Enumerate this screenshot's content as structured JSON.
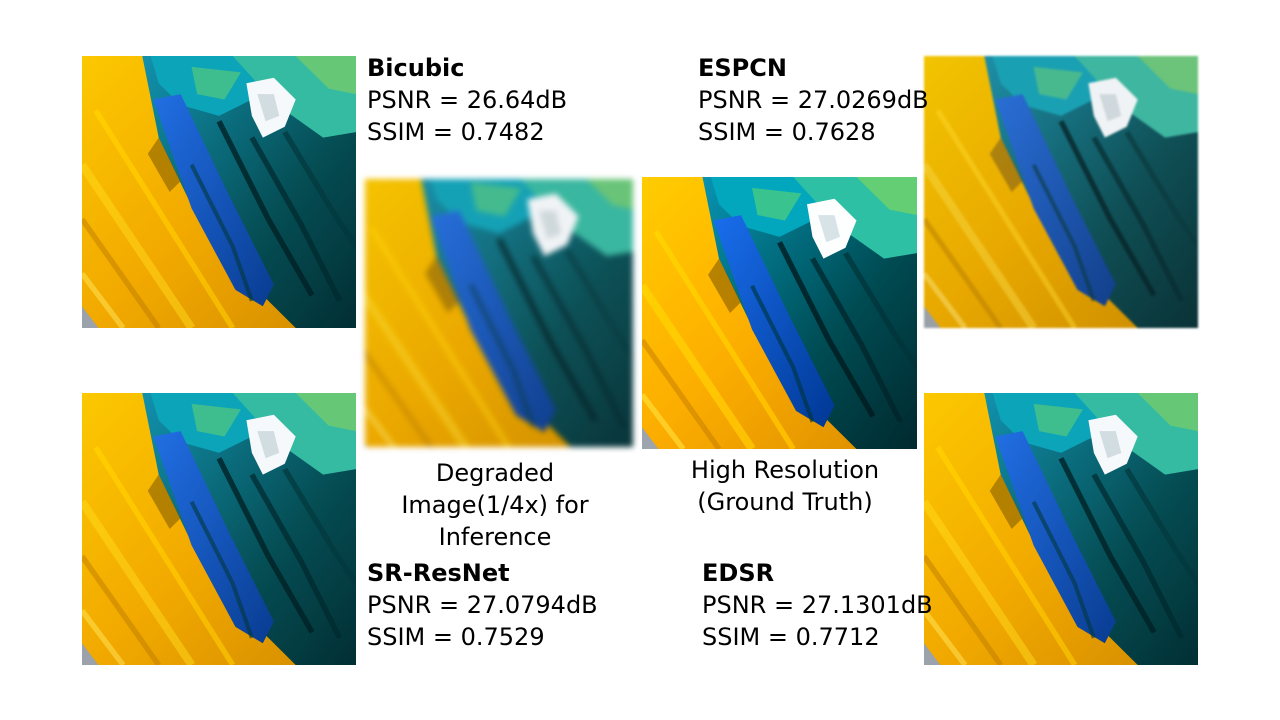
{
  "methods": {
    "bicubic": {
      "name": "Bicubic",
      "psnr": "PSNR = 26.64dB",
      "ssim": "SSIM = 0.7482"
    },
    "espcn": {
      "name": "ESPCN",
      "psnr": "PSNR = 27.0269dB",
      "ssim": "SSIM = 0.7628"
    },
    "srresnet": {
      "name": "SR-ResNet",
      "psnr": "PSNR = 27.0794dB",
      "ssim": "SSIM = 0.7529"
    },
    "edsr": {
      "name": "EDSR",
      "psnr": "PSNR = 27.1301dB",
      "ssim": "SSIM = 0.7712"
    }
  },
  "captions": {
    "degraded": [
      "Degraded",
      "Image(1/4x) for",
      "Inference"
    ],
    "high_resolution": [
      "High Resolution",
      "(Ground Truth)"
    ]
  }
}
